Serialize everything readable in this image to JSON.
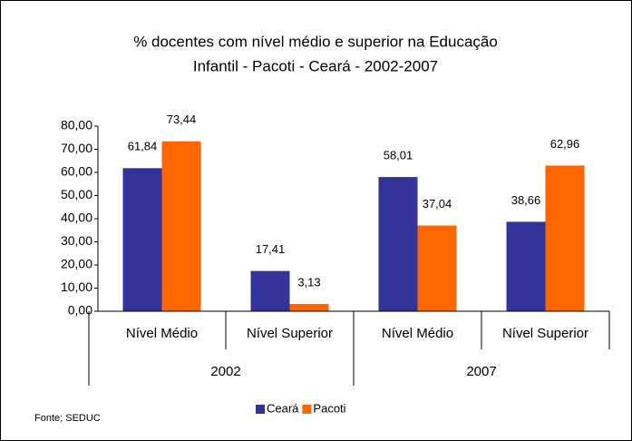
{
  "chart_data": {
    "type": "bar",
    "title": [
      "% docentes com nível médio e superior na  Educação",
      "Infantil - Pacoti - Ceará - 2002-2007"
    ],
    "groups": [
      {
        "name": "2002",
        "categories": [
          "Nível Médio",
          "Nível Superior"
        ]
      },
      {
        "name": "2007",
        "categories": [
          "Nível Médio",
          "Nível Superior"
        ]
      }
    ],
    "series": [
      {
        "name": "Ceará",
        "color": "#333399",
        "values": [
          61.84,
          17.41,
          58.01,
          38.66
        ],
        "value_labels": [
          "61,84",
          "17,41",
          "58,01",
          "38,66"
        ]
      },
      {
        "name": "Pacoti",
        "color": "#ff6600",
        "values": [
          73.44,
          3.13,
          37.04,
          62.96
        ],
        "value_labels": [
          "73,44",
          "3,13",
          "37,04",
          "62,96"
        ]
      }
    ],
    "ylim": [
      0,
      80
    ],
    "yticks": [
      {
        "value": 0,
        "label": "0,00"
      },
      {
        "value": 10,
        "label": "10,00"
      },
      {
        "value": 20,
        "label": "20,00"
      },
      {
        "value": 30,
        "label": "30,00"
      },
      {
        "value": 40,
        "label": "40,00"
      },
      {
        "value": 50,
        "label": "50,00"
      },
      {
        "value": 60,
        "label": "60,00"
      },
      {
        "value": 70,
        "label": "70,00"
      },
      {
        "value": 80,
        "label": "80,00"
      }
    ],
    "grid": false,
    "legend": "bottom",
    "source": "Fonte; SEDUC"
  }
}
